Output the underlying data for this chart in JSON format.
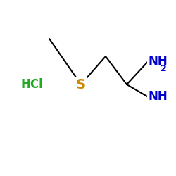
{
  "background_color": "#ffffff",
  "figsize": [
    2.5,
    2.5
  ],
  "dpi": 100,
  "xlim": [
    0.0,
    1.0
  ],
  "ylim": [
    0.0,
    1.0
  ],
  "bond_color": "#000000",
  "bond_lw": 1.5,
  "p_ch3": [
    0.28,
    0.78
  ],
  "p_s": [
    0.46,
    0.52
  ],
  "p_ch2": [
    0.6,
    0.68
  ],
  "p_c": [
    0.72,
    0.52
  ],
  "p_nh2": [
    0.84,
    0.65
  ],
  "p_nh": [
    0.84,
    0.45
  ],
  "p_hcl": [
    0.18,
    0.52
  ],
  "s_color": "#cc8800",
  "hcl_color": "#22aa22",
  "nh_color": "#0000cc",
  "s_fontsize": 14,
  "hcl_fontsize": 12,
  "nh_fontsize": 12,
  "sub_fontsize": 9
}
